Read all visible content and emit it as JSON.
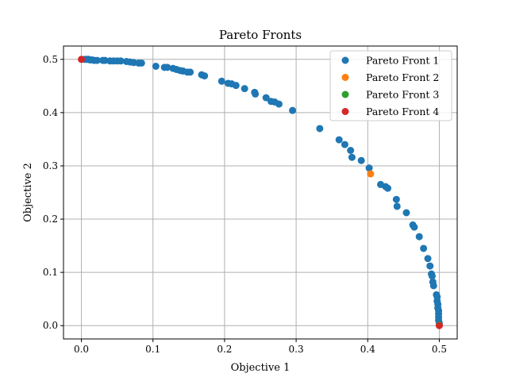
{
  "chart_data": {
    "type": "scatter",
    "title": "Pareto Fronts",
    "xlabel": "Objective 1",
    "ylabel": "Objective 2",
    "xlim": [
      -0.025,
      0.525
    ],
    "ylim": [
      -0.025,
      0.525
    ],
    "xticks": [
      0.0,
      0.1,
      0.2,
      0.3,
      0.4,
      0.5
    ],
    "yticks": [
      0.0,
      0.1,
      0.2,
      0.3,
      0.4,
      0.5
    ],
    "xtick_labels": [
      "0.0",
      "0.1",
      "0.2",
      "0.3",
      "0.4",
      "0.5"
    ],
    "ytick_labels": [
      "0.0",
      "0.1",
      "0.2",
      "0.3",
      "0.4",
      "0.5"
    ],
    "grid": true,
    "legend": "top-right",
    "series": [
      {
        "name": "Pareto Front 1",
        "color": "#1f77b4",
        "points": [
          [
            0.005,
            0.5
          ],
          [
            0.008,
            0.5
          ],
          [
            0.01,
            0.5
          ],
          [
            0.012,
            0.499
          ],
          [
            0.015,
            0.499
          ],
          [
            0.018,
            0.498
          ],
          [
            0.022,
            0.498
          ],
          [
            0.03,
            0.498
          ],
          [
            0.033,
            0.498
          ],
          [
            0.04,
            0.497
          ],
          [
            0.045,
            0.497
          ],
          [
            0.05,
            0.497
          ],
          [
            0.055,
            0.497
          ],
          [
            0.063,
            0.496
          ],
          [
            0.068,
            0.495
          ],
          [
            0.073,
            0.494
          ],
          [
            0.08,
            0.493
          ],
          [
            0.084,
            0.493
          ],
          [
            0.104,
            0.487
          ],
          [
            0.116,
            0.485
          ],
          [
            0.12,
            0.485
          ],
          [
            0.128,
            0.483
          ],
          [
            0.133,
            0.481
          ],
          [
            0.138,
            0.479
          ],
          [
            0.142,
            0.478
          ],
          [
            0.148,
            0.476
          ],
          [
            0.152,
            0.476
          ],
          [
            0.168,
            0.471
          ],
          [
            0.172,
            0.469
          ],
          [
            0.196,
            0.459
          ],
          [
            0.205,
            0.455
          ],
          [
            0.21,
            0.454
          ],
          [
            0.216,
            0.451
          ],
          [
            0.228,
            0.445
          ],
          [
            0.242,
            0.438
          ],
          [
            0.243,
            0.435
          ],
          [
            0.258,
            0.428
          ],
          [
            0.265,
            0.421
          ],
          [
            0.27,
            0.42
          ],
          [
            0.276,
            0.416
          ],
          [
            0.295,
            0.404
          ],
          [
            0.333,
            0.37
          ],
          [
            0.36,
            0.349
          ],
          [
            0.368,
            0.34
          ],
          [
            0.376,
            0.329
          ],
          [
            0.378,
            0.316
          ],
          [
            0.391,
            0.31
          ],
          [
            0.402,
            0.296
          ],
          [
            0.418,
            0.265
          ],
          [
            0.425,
            0.261
          ],
          [
            0.428,
            0.258
          ],
          [
            0.44,
            0.237
          ],
          [
            0.441,
            0.224
          ],
          [
            0.454,
            0.212
          ],
          [
            0.463,
            0.189
          ],
          [
            0.465,
            0.185
          ],
          [
            0.472,
            0.167
          ],
          [
            0.478,
            0.145
          ],
          [
            0.484,
            0.126
          ],
          [
            0.487,
            0.112
          ],
          [
            0.489,
            0.097
          ],
          [
            0.49,
            0.093
          ],
          [
            0.491,
            0.082
          ],
          [
            0.492,
            0.075
          ],
          [
            0.496,
            0.058
          ],
          [
            0.497,
            0.054
          ],
          [
            0.497,
            0.046
          ],
          [
            0.498,
            0.04
          ],
          [
            0.498,
            0.033
          ],
          [
            0.499,
            0.028
          ],
          [
            0.499,
            0.022
          ],
          [
            0.499,
            0.016
          ],
          [
            0.499,
            0.01
          ],
          [
            0.5,
            0.005
          ]
        ]
      },
      {
        "name": "Pareto Front 2",
        "color": "#ff7f0e",
        "points": [
          [
            0.404,
            0.285
          ]
        ]
      },
      {
        "name": "Pareto Front 3",
        "color": "#2ca02c",
        "points": [
          [
            0.5,
            0.001
          ]
        ]
      },
      {
        "name": "Pareto Front 4",
        "color": "#d62728",
        "points": [
          [
            0.0,
            0.5
          ],
          [
            0.5,
            0.0
          ]
        ]
      }
    ]
  }
}
